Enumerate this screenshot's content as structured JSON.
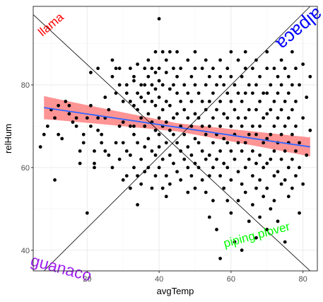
{
  "chart_data": {
    "type": "scatter",
    "title": "",
    "xlabel": "avgTemp",
    "ylabel": "relHum",
    "xlim": [
      5,
      84
    ],
    "ylim": [
      35,
      99
    ],
    "x_ticks": [
      20,
      40,
      60,
      80
    ],
    "y_ticks": [
      40,
      60,
      80
    ],
    "grid": true,
    "trend": {
      "method": "linear fit with confidence band",
      "x_range": [
        8,
        82
      ],
      "y_start": 74.5,
      "y_end": 65.0,
      "band_halfwidth_start": 2.8,
      "band_halfwidth_mid": 1.0,
      "band_halfwidth_end": 2.3,
      "line_color": "#3366ff",
      "band_color": "#ff6b6b"
    },
    "diagonals": [
      {
        "from": [
          5,
          97
        ],
        "to": [
          82,
          35
        ]
      },
      {
        "from": [
          8,
          35
        ],
        "to": [
          82,
          99
        ]
      }
    ],
    "corner_labels": [
      {
        "text": "llama",
        "position": "top-left",
        "color": "#ff0000",
        "rotation": 40
      },
      {
        "text": "alpaca",
        "position": "top-right",
        "color": "#0000ff",
        "rotation": -140
      },
      {
        "text": "guanaco",
        "position": "bottom-left",
        "color": "#a020f0",
        "rotation": -15
      },
      {
        "text": "piping plover",
        "position": "bottom-right",
        "color": "#00ff00",
        "rotation": 15
      }
    ],
    "points": [
      [
        7,
        65
      ],
      [
        8,
        68
      ],
      [
        9,
        70
      ],
      [
        10,
        74
      ],
      [
        11,
        57
      ],
      [
        11,
        72
      ],
      [
        12,
        75
      ],
      [
        12,
        68
      ],
      [
        13,
        67
      ],
      [
        14,
        76
      ],
      [
        15,
        75
      ],
      [
        15,
        73
      ],
      [
        16,
        71
      ],
      [
        17,
        70
      ],
      [
        17,
        72
      ],
      [
        18,
        64
      ],
      [
        18,
        61
      ],
      [
        19,
        66
      ],
      [
        19,
        68
      ],
      [
        20,
        72
      ],
      [
        20,
        49
      ],
      [
        21,
        75
      ],
      [
        21,
        83
      ],
      [
        21,
        70
      ],
      [
        22,
        64
      ],
      [
        22,
        61
      ],
      [
        22,
        60
      ],
      [
        23,
        84
      ],
      [
        23,
        72
      ],
      [
        23,
        69
      ],
      [
        24,
        68
      ],
      [
        24,
        66
      ],
      [
        25,
        77
      ],
      [
        25,
        72
      ],
      [
        25,
        64
      ],
      [
        26,
        63
      ],
      [
        26,
        74
      ],
      [
        27,
        82
      ],
      [
        27,
        86
      ],
      [
        27,
        60
      ],
      [
        28,
        78
      ],
      [
        28,
        84
      ],
      [
        28,
        66
      ],
      [
        29,
        80
      ],
      [
        29,
        84
      ],
      [
        29,
        70
      ],
      [
        29,
        62
      ],
      [
        30,
        76
      ],
      [
        30,
        71
      ],
      [
        30,
        66
      ],
      [
        30,
        57
      ],
      [
        31,
        80
      ],
      [
        31,
        78
      ],
      [
        31,
        64
      ],
      [
        31,
        58
      ],
      [
        32,
        84
      ],
      [
        32,
        76
      ],
      [
        32,
        70
      ],
      [
        32,
        63
      ],
      [
        32,
        55
      ],
      [
        33,
        82
      ],
      [
        33,
        81
      ],
      [
        33,
        75
      ],
      [
        33,
        70
      ],
      [
        33,
        68
      ],
      [
        33,
        60
      ],
      [
        34,
        85
      ],
      [
        34,
        78
      ],
      [
        34,
        74
      ],
      [
        34,
        66
      ],
      [
        34,
        58
      ],
      [
        34,
        51
      ],
      [
        35,
        80
      ],
      [
        35,
        77
      ],
      [
        35,
        72
      ],
      [
        35,
        62
      ],
      [
        35,
        56
      ],
      [
        36,
        84
      ],
      [
        36,
        80
      ],
      [
        36,
        76
      ],
      [
        36,
        70
      ],
      [
        36,
        65
      ],
      [
        36,
        59
      ],
      [
        37,
        86
      ],
      [
        37,
        82
      ],
      [
        37,
        78
      ],
      [
        37,
        73
      ],
      [
        37,
        67
      ],
      [
        37,
        60
      ],
      [
        38,
        84
      ],
      [
        38,
        80
      ],
      [
        38,
        76
      ],
      [
        38,
        71
      ],
      [
        38,
        64
      ],
      [
        38,
        55
      ],
      [
        39,
        88
      ],
      [
        39,
        83
      ],
      [
        39,
        79
      ],
      [
        39,
        75
      ],
      [
        39,
        69
      ],
      [
        39,
        63
      ],
      [
        39,
        58
      ],
      [
        40,
        96
      ],
      [
        40,
        84
      ],
      [
        40,
        81
      ],
      [
        40,
        77
      ],
      [
        40,
        72
      ],
      [
        40,
        68
      ],
      [
        40,
        65
      ],
      [
        40,
        60
      ],
      [
        41,
        88
      ],
      [
        41,
        80
      ],
      [
        41,
        74
      ],
      [
        41,
        70
      ],
      [
        41,
        62
      ],
      [
        41,
        55
      ],
      [
        42,
        86
      ],
      [
        42,
        83
      ],
      [
        42,
        76
      ],
      [
        42,
        71
      ],
      [
        42,
        66
      ],
      [
        42,
        58
      ],
      [
        42,
        53
      ],
      [
        43,
        88
      ],
      [
        43,
        79
      ],
      [
        43,
        75
      ],
      [
        43,
        69
      ],
      [
        43,
        63
      ],
      [
        43,
        56
      ],
      [
        44,
        84
      ],
      [
        44,
        80
      ],
      [
        44,
        72
      ],
      [
        44,
        68
      ],
      [
        44,
        61
      ],
      [
        45,
        88
      ],
      [
        45,
        82
      ],
      [
        45,
        78
      ],
      [
        45,
        73
      ],
      [
        45,
        66
      ],
      [
        45,
        59
      ],
      [
        46,
        84
      ],
      [
        46,
        76
      ],
      [
        46,
        70
      ],
      [
        46,
        64
      ],
      [
        46,
        57
      ],
      [
        47,
        80
      ],
      [
        47,
        74
      ],
      [
        47,
        68
      ],
      [
        47,
        62
      ],
      [
        48,
        86
      ],
      [
        48,
        78
      ],
      [
        48,
        72
      ],
      [
        48,
        65
      ],
      [
        48,
        60
      ],
      [
        48,
        54
      ],
      [
        49,
        82
      ],
      [
        49,
        76
      ],
      [
        49,
        70
      ],
      [
        49,
        63
      ],
      [
        49,
        58
      ],
      [
        50,
        88
      ],
      [
        50,
        84
      ],
      [
        50,
        80
      ],
      [
        50,
        73
      ],
      [
        50,
        67
      ],
      [
        50,
        61
      ],
      [
        50,
        55
      ],
      [
        51,
        78
      ],
      [
        51,
        72
      ],
      [
        51,
        66
      ],
      [
        51,
        60
      ],
      [
        52,
        84
      ],
      [
        52,
        76
      ],
      [
        52,
        70
      ],
      [
        52,
        64
      ],
      [
        52,
        57
      ],
      [
        53,
        86
      ],
      [
        53,
        80
      ],
      [
        53,
        74
      ],
      [
        53,
        68
      ],
      [
        53,
        62
      ],
      [
        53,
        54
      ],
      [
        54,
        82
      ],
      [
        54,
        76
      ],
      [
        54,
        70
      ],
      [
        54,
        63
      ],
      [
        54,
        58
      ],
      [
        54,
        48
      ],
      [
        55,
        84
      ],
      [
        55,
        78
      ],
      [
        55,
        72
      ],
      [
        55,
        66
      ],
      [
        55,
        60
      ],
      [
        55,
        52
      ],
      [
        56,
        80
      ],
      [
        56,
        74
      ],
      [
        56,
        68
      ],
      [
        56,
        62
      ],
      [
        56,
        45
      ],
      [
        57,
        86
      ],
      [
        57,
        82
      ],
      [
        57,
        76
      ],
      [
        57,
        70
      ],
      [
        57,
        64
      ],
      [
        57,
        58
      ],
      [
        57,
        38
      ],
      [
        58,
        80
      ],
      [
        58,
        73
      ],
      [
        58,
        67
      ],
      [
        58,
        61
      ],
      [
        58,
        55
      ],
      [
        59,
        84
      ],
      [
        59,
        78
      ],
      [
        59,
        72
      ],
      [
        59,
        66
      ],
      [
        59,
        60
      ],
      [
        59,
        52
      ],
      [
        60,
        88
      ],
      [
        60,
        82
      ],
      [
        60,
        76
      ],
      [
        60,
        70
      ],
      [
        60,
        64
      ],
      [
        60,
        57
      ],
      [
        60,
        49
      ],
      [
        61,
        80
      ],
      [
        61,
        74
      ],
      [
        61,
        68
      ],
      [
        61,
        62
      ],
      [
        61,
        42
      ],
      [
        62,
        86
      ],
      [
        62,
        78
      ],
      [
        62,
        72
      ],
      [
        62,
        66
      ],
      [
        62,
        59
      ],
      [
        62,
        52
      ],
      [
        63,
        82
      ],
      [
        63,
        76
      ],
      [
        63,
        70
      ],
      [
        63,
        64
      ],
      [
        63,
        56
      ],
      [
        63,
        40
      ],
      [
        64,
        88
      ],
      [
        64,
        84
      ],
      [
        64,
        78
      ],
      [
        64,
        72
      ],
      [
        64,
        66
      ],
      [
        64,
        60
      ],
      [
        64,
        54
      ],
      [
        65,
        80
      ],
      [
        65,
        74
      ],
      [
        65,
        68
      ],
      [
        65,
        62
      ],
      [
        65,
        47
      ],
      [
        66,
        84
      ],
      [
        66,
        78
      ],
      [
        66,
        70
      ],
      [
        66,
        64
      ],
      [
        66,
        58
      ],
      [
        66,
        51
      ],
      [
        67,
        86
      ],
      [
        67,
        80
      ],
      [
        67,
        74
      ],
      [
        67,
        68
      ],
      [
        67,
        61
      ],
      [
        67,
        55
      ],
      [
        67,
        43
      ],
      [
        68,
        82
      ],
      [
        68,
        76
      ],
      [
        68,
        70
      ],
      [
        68,
        63
      ],
      [
        68,
        57
      ],
      [
        68,
        48
      ],
      [
        69,
        78
      ],
      [
        69,
        72
      ],
      [
        69,
        66
      ],
      [
        69,
        60
      ],
      [
        69,
        53
      ],
      [
        70,
        88
      ],
      [
        70,
        84
      ],
      [
        70,
        78
      ],
      [
        70,
        73
      ],
      [
        70,
        67
      ],
      [
        70,
        61
      ],
      [
        70,
        55
      ],
      [
        70,
        45
      ],
      [
        71,
        80
      ],
      [
        71,
        74
      ],
      [
        71,
        68
      ],
      [
        71,
        62
      ],
      [
        71,
        50
      ],
      [
        72,
        84
      ],
      [
        72,
        76
      ],
      [
        72,
        70
      ],
      [
        72,
        64
      ],
      [
        72,
        58
      ],
      [
        72,
        52
      ],
      [
        73,
        82
      ],
      [
        73,
        78
      ],
      [
        73,
        72
      ],
      [
        73,
        66
      ],
      [
        73,
        59
      ],
      [
        73,
        47
      ],
      [
        74,
        86
      ],
      [
        74,
        80
      ],
      [
        74,
        74
      ],
      [
        74,
        68
      ],
      [
        74,
        62
      ],
      [
        74,
        56
      ],
      [
        75,
        84
      ],
      [
        75,
        76
      ],
      [
        75,
        70
      ],
      [
        75,
        64
      ],
      [
        75,
        57
      ],
      [
        75,
        42
      ],
      [
        76,
        82
      ],
      [
        76,
        78
      ],
      [
        76,
        72
      ],
      [
        76,
        66
      ],
      [
        76,
        60
      ],
      [
        76,
        53
      ],
      [
        77,
        88
      ],
      [
        77,
        80
      ],
      [
        77,
        74
      ],
      [
        77,
        68
      ],
      [
        77,
        62
      ],
      [
        77,
        55
      ],
      [
        78,
        84
      ],
      [
        78,
        76
      ],
      [
        78,
        70
      ],
      [
        78,
        64
      ],
      [
        78,
        58
      ],
      [
        79,
        80
      ],
      [
        79,
        66
      ],
      [
        79,
        60
      ],
      [
        79,
        49
      ],
      [
        80,
        85
      ],
      [
        80,
        72
      ],
      [
        80,
        56
      ],
      [
        81,
        77
      ],
      [
        81,
        63
      ],
      [
        82,
        82
      ],
      [
        82,
        69
      ]
    ]
  }
}
